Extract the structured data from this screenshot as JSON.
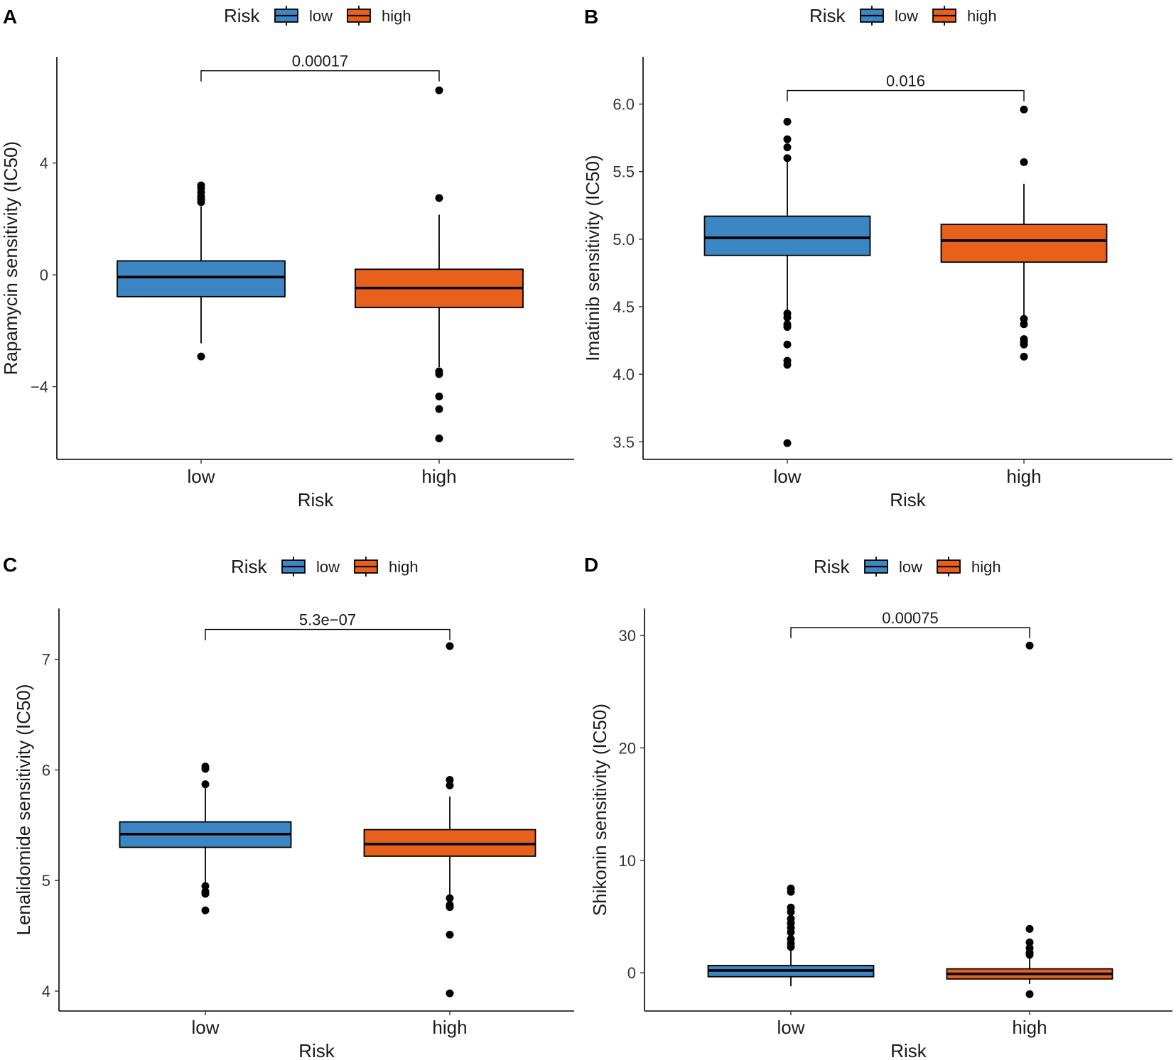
{
  "colors": {
    "low": "#3B86C3",
    "high": "#E8601C",
    "axis": "#000000"
  },
  "chart_data": [
    {
      "panel": "A",
      "type": "box",
      "legend": {
        "title": "Risk",
        "entries": [
          "low",
          "high"
        ]
      },
      "categories": [
        "low",
        "high"
      ],
      "xlabel": "Risk",
      "ylabel": "Rapamycin sensitivity (IC50)",
      "ylim": [
        -6.6,
        7.8
      ],
      "yticks": [
        -4,
        0,
        4
      ],
      "ytick_labels": [
        "−4",
        "0",
        "4"
      ],
      "pvalue": "0.00017",
      "bracket_y": 7.3,
      "boxes": [
        {
          "group": "low",
          "q1": -0.78,
          "median": -0.08,
          "q3": 0.5,
          "whisker_low": -2.45,
          "whisker_high": 2.45,
          "outliers": [
            3.2,
            3.1,
            2.95,
            2.8,
            2.7,
            2.6,
            -2.92
          ]
        },
        {
          "group": "high",
          "q1": -1.17,
          "median": -0.47,
          "q3": 0.2,
          "whisker_low": -3.3,
          "whisker_high": 2.15,
          "outliers": [
            6.6,
            2.75,
            -3.45,
            -3.55,
            -4.35,
            -4.8,
            -5.85
          ]
        }
      ]
    },
    {
      "panel": "B",
      "type": "box",
      "legend": {
        "title": "Risk",
        "entries": [
          "low",
          "high"
        ]
      },
      "categories": [
        "low",
        "high"
      ],
      "xlabel": "Risk",
      "ylabel": "Imatinib sensitivity (IC50)",
      "ylim": [
        3.37,
        6.35
      ],
      "yticks": [
        3.5,
        4.0,
        4.5,
        5.0,
        5.5,
        6.0
      ],
      "ytick_labels": [
        "3.5",
        "4.0",
        "4.5",
        "5.0",
        "5.5",
        "6.0"
      ],
      "pvalue": "0.016",
      "bracket_y": 6.1,
      "boxes": [
        {
          "group": "low",
          "q1": 4.88,
          "median": 5.01,
          "q3": 5.17,
          "whisker_low": 4.47,
          "whisker_high": 5.6,
          "outliers": [
            5.87,
            5.74,
            5.68,
            5.6,
            4.45,
            4.42,
            4.37,
            4.35,
            4.22,
            4.1,
            4.07,
            3.49
          ]
        },
        {
          "group": "high",
          "q1": 4.83,
          "median": 4.99,
          "q3": 5.11,
          "whisker_low": 4.43,
          "whisker_high": 5.41,
          "outliers": [
            5.96,
            5.57,
            4.41,
            4.37,
            4.26,
            4.24,
            4.22,
            4.13
          ]
        }
      ]
    },
    {
      "panel": "C",
      "type": "box",
      "legend": {
        "title": "Risk",
        "entries": [
          "low",
          "high"
        ]
      },
      "categories": [
        "low",
        "high"
      ],
      "xlabel": "Risk",
      "ylabel": "Lenalidomide sensitivity (IC50)",
      "ylim": [
        3.82,
        7.46
      ],
      "yticks": [
        4,
        5,
        6,
        7
      ],
      "ytick_labels": [
        "4",
        "5",
        "6",
        "7"
      ],
      "pvalue": "5.3e−07",
      "bracket_y": 7.27,
      "boxes": [
        {
          "group": "low",
          "q1": 5.3,
          "median": 5.42,
          "q3": 5.53,
          "whisker_low": 4.97,
          "whisker_high": 5.85,
          "outliers": [
            6.03,
            6.01,
            5.87,
            4.95,
            4.9,
            4.88,
            4.73
          ]
        },
        {
          "group": "high",
          "q1": 5.22,
          "median": 5.33,
          "q3": 5.46,
          "whisker_low": 4.86,
          "whisker_high": 5.76,
          "outliers": [
            7.12,
            5.91,
            5.86,
            4.84,
            4.78,
            4.76,
            4.51,
            3.98
          ]
        }
      ]
    },
    {
      "panel": "D",
      "type": "box",
      "legend": {
        "title": "Risk",
        "entries": [
          "low",
          "high"
        ]
      },
      "categories": [
        "low",
        "high"
      ],
      "xlabel": "Risk",
      "ylabel": "Shikonin sensitivity (IC50)",
      "ylim": [
        -3.4,
        32.4
      ],
      "yticks": [
        0,
        10,
        20,
        30
      ],
      "ytick_labels": [
        "0",
        "10",
        "20",
        "30"
      ],
      "pvalue": "0.00075",
      "bracket_y": 30.7,
      "boxes": [
        {
          "group": "low",
          "q1": -0.35,
          "median": 0.2,
          "q3": 0.65,
          "whisker_low": -1.2,
          "whisker_high": 2.1,
          "outliers": [
            7.5,
            7.2,
            5.8,
            5.4,
            4.8,
            4.4,
            4.0,
            3.6,
            3.0,
            2.6,
            2.3
          ]
        },
        {
          "group": "high",
          "q1": -0.55,
          "median": -0.1,
          "q3": 0.35,
          "whisker_low": -1.0,
          "whisker_high": 1.4,
          "outliers": [
            29.1,
            3.9,
            2.7,
            2.2,
            1.8,
            1.6,
            -1.9
          ]
        }
      ]
    }
  ]
}
